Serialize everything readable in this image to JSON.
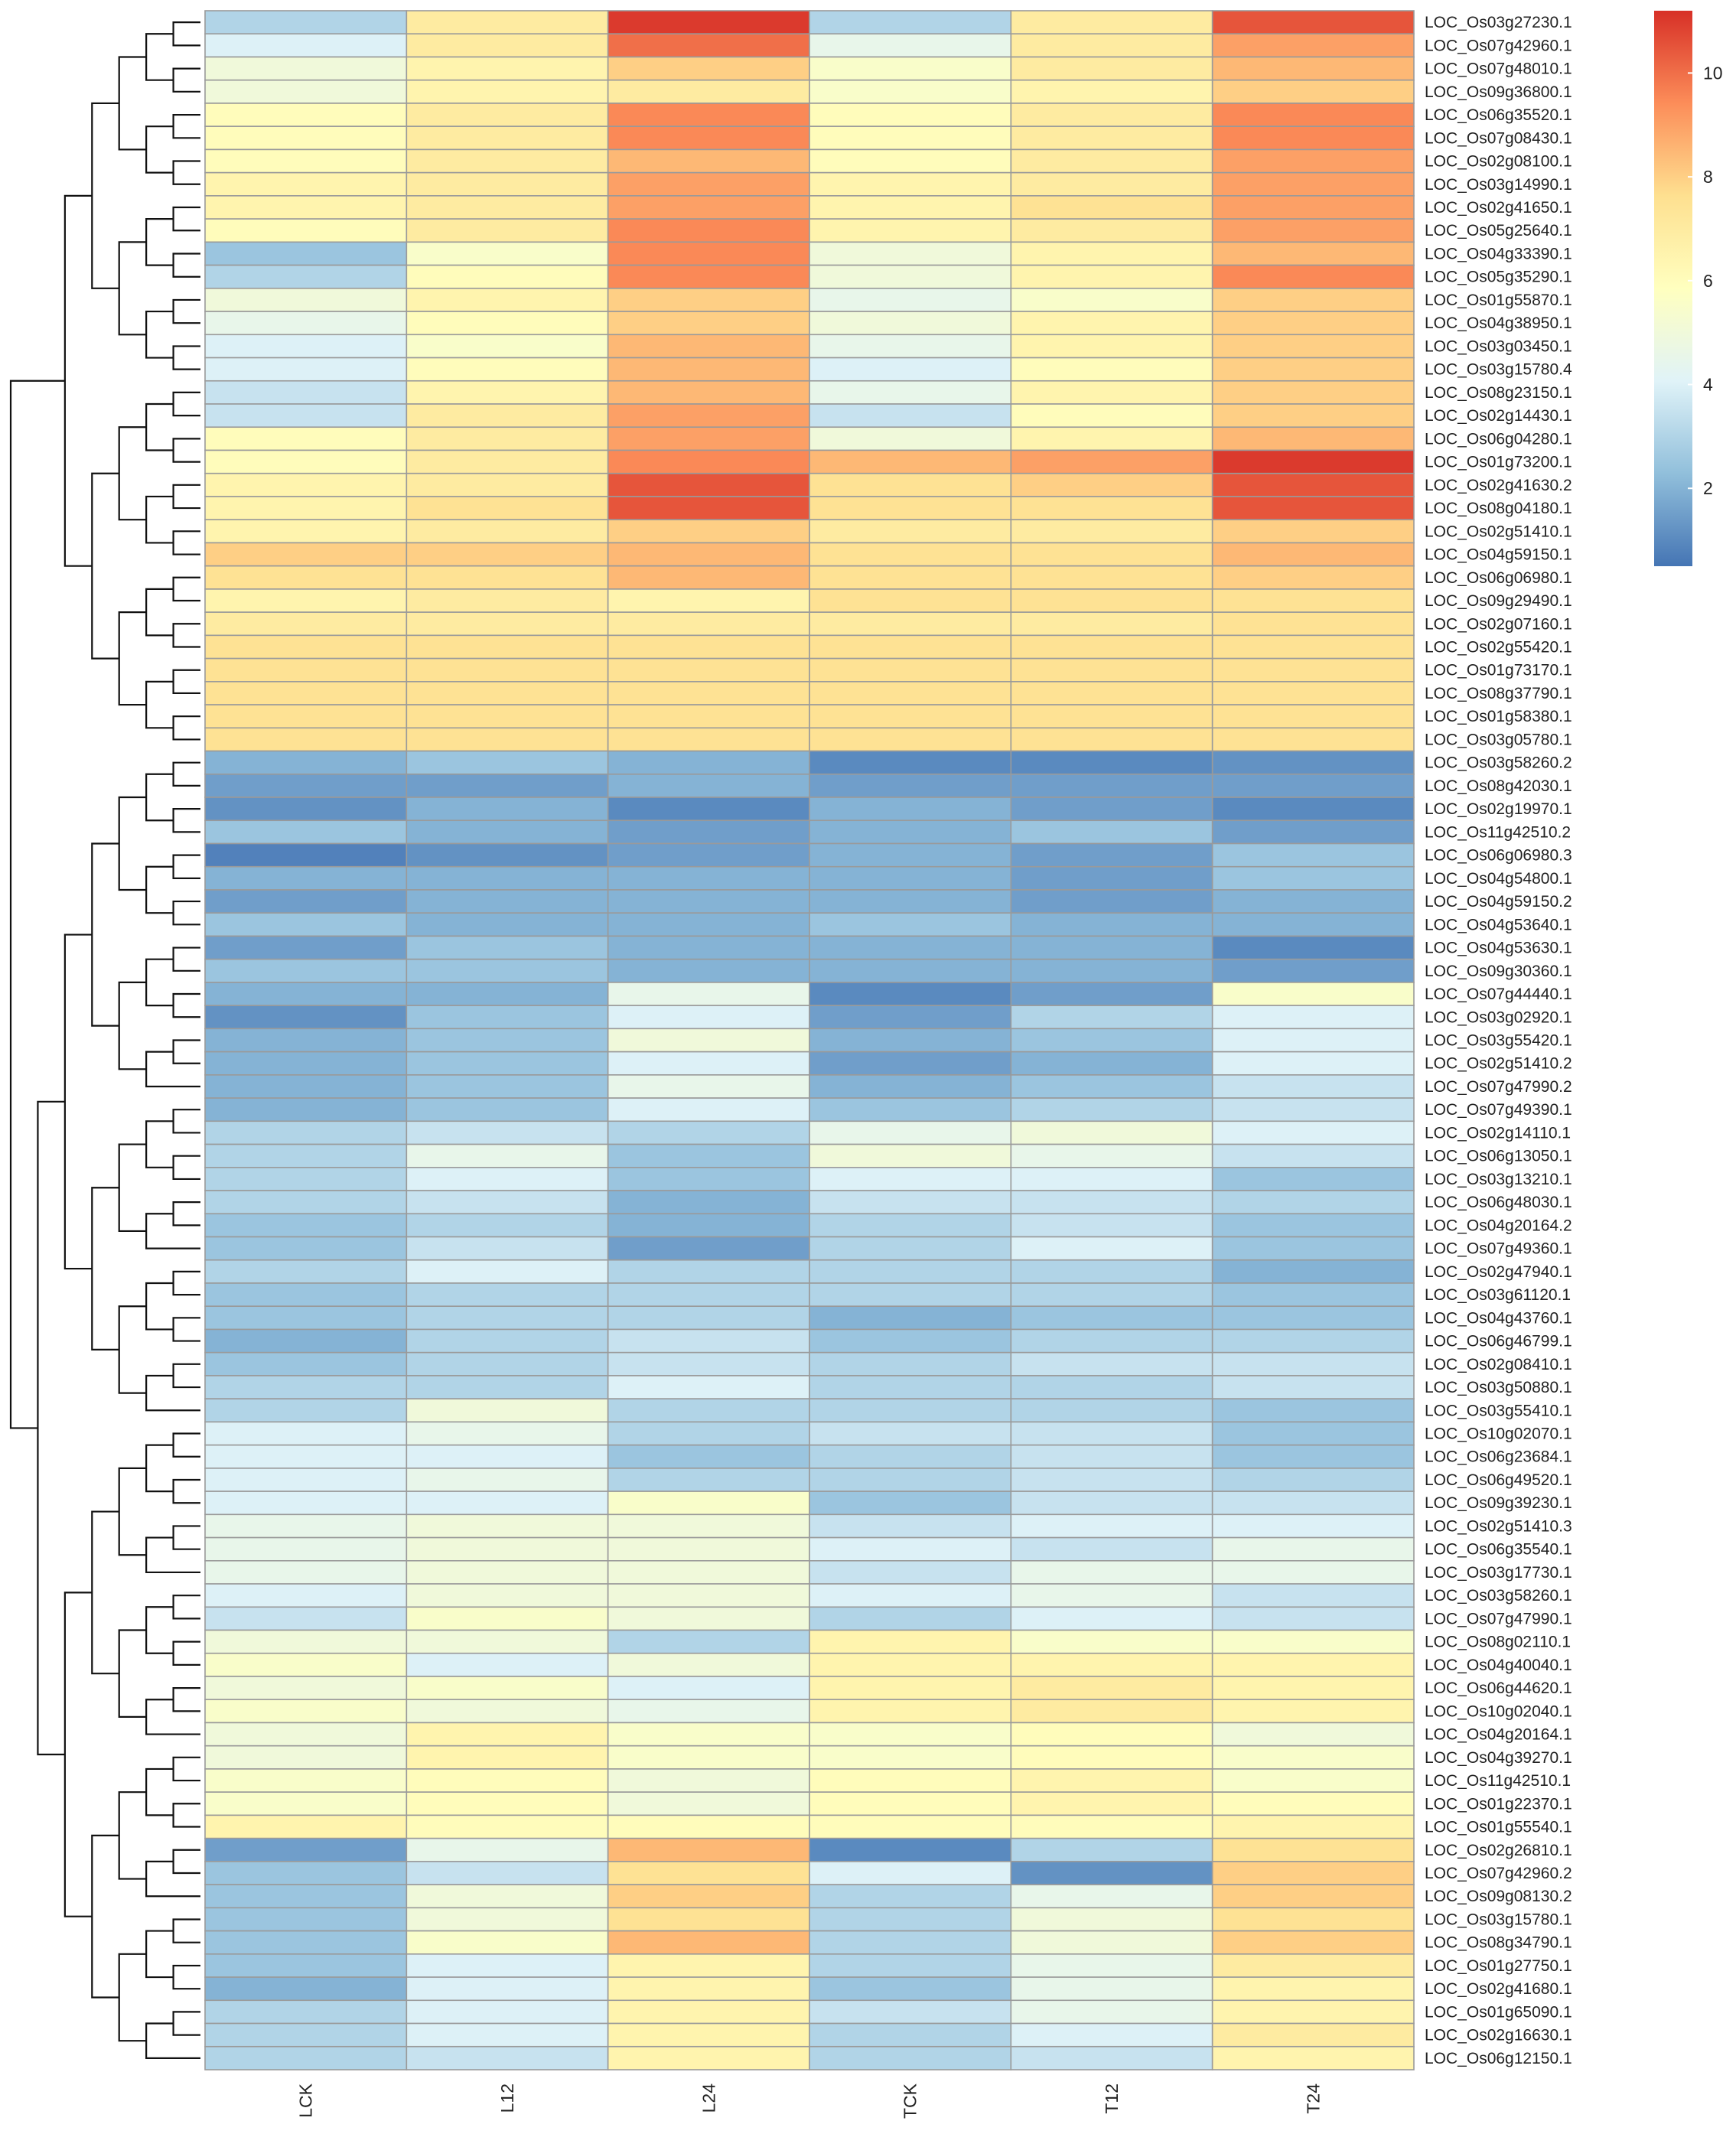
{
  "chart_data": {
    "type": "heatmap",
    "title": "",
    "xlabel": "",
    "ylabel": "",
    "columns": [
      "LCK",
      "L12",
      "L24",
      "TCK",
      "T12",
      "T24"
    ],
    "rows": [
      "LOC_Os03g27230.1",
      "LOC_Os07g42960.1",
      "LOC_Os07g48010.1",
      "LOC_Os09g36800.1",
      "LOC_Os06g35520.1",
      "LOC_Os07g08430.1",
      "LOC_Os02g08100.1",
      "LOC_Os03g14990.1",
      "LOC_Os02g41650.1",
      "LOC_Os05g25640.1",
      "LOC_Os04g33390.1",
      "LOC_Os05g35290.1",
      "LOC_Os01g55870.1",
      "LOC_Os04g38950.1",
      "LOC_Os03g03450.1",
      "LOC_Os03g15780.4",
      "LOC_Os08g23150.1",
      "LOC_Os02g14430.1",
      "LOC_Os06g04280.1",
      "LOC_Os01g73200.1",
      "LOC_Os02g41630.2",
      "LOC_Os08g04180.1",
      "LOC_Os02g51410.1",
      "LOC_Os04g59150.1",
      "LOC_Os06g06980.1",
      "LOC_Os09g29490.1",
      "LOC_Os02g07160.1",
      "LOC_Os02g55420.1",
      "LOC_Os01g73170.1",
      "LOC_Os08g37790.1",
      "LOC_Os01g58380.1",
      "LOC_Os03g05780.1",
      "LOC_Os03g58260.2",
      "LOC_Os08g42030.1",
      "LOC_Os02g19970.1",
      "LOC_Os11g42510.2",
      "LOC_Os06g06980.3",
      "LOC_Os04g54800.1",
      "LOC_Os04g59150.2",
      "LOC_Os04g53640.1",
      "LOC_Os04g53630.1",
      "LOC_Os09g30360.1",
      "LOC_Os07g44440.1",
      "LOC_Os03g02920.1",
      "LOC_Os03g55420.1",
      "LOC_Os02g51410.2",
      "LOC_Os07g47990.2",
      "LOC_Os07g49390.1",
      "LOC_Os02g14110.1",
      "LOC_Os06g13050.1",
      "LOC_Os03g13210.1",
      "LOC_Os06g48030.1",
      "LOC_Os04g20164.2",
      "LOC_Os07g49360.1",
      "LOC_Os02g47940.1",
      "LOC_Os03g61120.1",
      "LOC_Os04g43760.1",
      "LOC_Os06g46799.1",
      "LOC_Os02g08410.1",
      "LOC_Os03g50880.1",
      "LOC_Os03g55410.1",
      "LOC_Os10g02070.1",
      "LOC_Os06g23684.1",
      "LOC_Os06g49520.1",
      "LOC_Os09g39230.1",
      "LOC_Os02g51410.3",
      "LOC_Os06g35540.1",
      "LOC_Os03g17730.1",
      "LOC_Os03g58260.1",
      "LOC_Os07g47990.1",
      "LOC_Os08g02110.1",
      "LOC_Os04g40040.1",
      "LOC_Os06g44620.1",
      "LOC_Os10g02040.1",
      "LOC_Os04g20164.1",
      "LOC_Os04g39270.1",
      "LOC_Os11g42510.1",
      "LOC_Os01g22370.1",
      "LOC_Os01g55540.1",
      "LOC_Os02g26810.1",
      "LOC_Os07g42960.2",
      "LOC_Os09g08130.2",
      "LOC_Os03g15780.1",
      "LOC_Os08g34790.1",
      "LOC_Os01g27750.1",
      "LOC_Os02g41680.1",
      "LOC_Os01g65090.1",
      "LOC_Os02g16630.1",
      "LOC_Os06g12150.1"
    ],
    "values": [
      [
        3.0,
        7.0,
        11.0,
        3.0,
        7.0,
        10.5
      ],
      [
        4.0,
        7.0,
        10.0,
        4.5,
        7.0,
        9.0
      ],
      [
        5.0,
        6.5,
        8.0,
        5.5,
        7.0,
        8.5
      ],
      [
        5.0,
        6.5,
        7.0,
        5.5,
        6.5,
        8.0
      ],
      [
        6.0,
        7.0,
        9.5,
        6.0,
        7.0,
        9.5
      ],
      [
        6.0,
        7.0,
        9.5,
        6.0,
        7.0,
        9.5
      ],
      [
        6.0,
        7.0,
        8.5,
        6.0,
        7.0,
        9.0
      ],
      [
        6.5,
        7.0,
        9.0,
        6.5,
        7.0,
        9.0
      ],
      [
        6.5,
        7.0,
        9.0,
        6.5,
        7.5,
        9.0
      ],
      [
        6.0,
        7.0,
        9.5,
        6.5,
        7.0,
        9.0
      ],
      [
        2.5,
        5.5,
        9.5,
        5.0,
        6.5,
        8.5
      ],
      [
        3.0,
        6.0,
        9.5,
        5.0,
        6.5,
        9.5
      ],
      [
        5.0,
        6.5,
        8.0,
        4.5,
        5.5,
        8.0
      ],
      [
        4.5,
        6.0,
        8.0,
        5.0,
        6.5,
        8.0
      ],
      [
        4.0,
        5.5,
        8.5,
        4.5,
        6.5,
        8.0
      ],
      [
        4.0,
        6.0,
        8.5,
        4.0,
        6.0,
        8.0
      ],
      [
        3.5,
        6.5,
        8.5,
        4.5,
        6.5,
        8.0
      ],
      [
        3.5,
        7.0,
        9.0,
        3.5,
        6.0,
        8.0
      ],
      [
        6.0,
        7.0,
        9.0,
        5.0,
        6.5,
        8.5
      ],
      [
        6.0,
        7.0,
        9.5,
        8.5,
        9.0,
        11.0
      ],
      [
        6.5,
        7.0,
        10.5,
        7.5,
        8.0,
        10.5
      ],
      [
        6.5,
        7.5,
        10.5,
        7.5,
        7.5,
        10.5
      ],
      [
        6.5,
        7.0,
        8.0,
        7.0,
        7.0,
        8.0
      ],
      [
        8.0,
        8.0,
        8.5,
        7.5,
        7.5,
        8.5
      ],
      [
        7.5,
        7.5,
        8.5,
        7.5,
        7.5,
        8.0
      ],
      [
        6.5,
        7.0,
        6.5,
        7.5,
        7.5,
        7.5
      ],
      [
        7.0,
        7.0,
        7.0,
        7.0,
        7.0,
        7.5
      ],
      [
        7.5,
        7.5,
        7.5,
        7.5,
        7.5,
        7.5
      ],
      [
        7.5,
        7.5,
        7.5,
        7.5,
        7.5,
        7.5
      ],
      [
        7.5,
        7.5,
        7.5,
        7.5,
        7.5,
        7.5
      ],
      [
        7.5,
        7.5,
        7.5,
        7.5,
        7.5,
        7.5
      ],
      [
        7.5,
        7.5,
        7.5,
        7.5,
        7.5,
        7.5
      ],
      [
        2.0,
        2.5,
        2.0,
        1.0,
        1.0,
        1.2
      ],
      [
        1.5,
        1.5,
        2.0,
        1.5,
        1.5,
        1.5
      ],
      [
        1.2,
        2.0,
        1.0,
        2.0,
        1.5,
        1.0
      ],
      [
        2.5,
        2.0,
        1.5,
        2.0,
        2.5,
        1.5
      ],
      [
        0.8,
        1.2,
        1.5,
        2.0,
        1.5,
        2.5
      ],
      [
        2.0,
        2.0,
        2.0,
        2.0,
        1.5,
        2.5
      ],
      [
        1.5,
        2.0,
        2.0,
        2.0,
        1.5,
        2.0
      ],
      [
        2.5,
        2.0,
        2.0,
        2.5,
        2.0,
        2.0
      ],
      [
        1.5,
        2.5,
        2.0,
        2.0,
        2.0,
        1.0
      ],
      [
        2.5,
        2.5,
        2.0,
        2.0,
        2.0,
        1.5
      ],
      [
        2.0,
        2.0,
        4.5,
        1.0,
        1.5,
        5.5
      ],
      [
        1.2,
        2.5,
        4.0,
        1.5,
        3.0,
        4.0
      ],
      [
        2.0,
        2.5,
        5.0,
        2.0,
        2.5,
        4.0
      ],
      [
        2.0,
        2.5,
        4.0,
        1.5,
        2.0,
        4.0
      ],
      [
        2.0,
        2.5,
        4.5,
        2.0,
        2.5,
        3.5
      ],
      [
        2.0,
        2.5,
        4.0,
        2.5,
        3.0,
        3.5
      ],
      [
        3.0,
        3.5,
        3.0,
        4.5,
        5.0,
        4.0
      ],
      [
        3.0,
        4.5,
        2.5,
        5.0,
        4.5,
        3.5
      ],
      [
        3.0,
        4.0,
        2.5,
        4.0,
        4.0,
        2.5
      ],
      [
        3.0,
        3.5,
        2.0,
        3.5,
        3.5,
        3.0
      ],
      [
        2.5,
        3.0,
        2.0,
        3.0,
        3.5,
        2.5
      ],
      [
        2.5,
        3.5,
        1.5,
        3.0,
        4.0,
        2.5
      ],
      [
        3.0,
        4.0,
        3.0,
        3.0,
        3.0,
        2.0
      ],
      [
        2.5,
        3.0,
        3.0,
        3.0,
        3.0,
        2.5
      ],
      [
        2.5,
        3.0,
        3.0,
        2.0,
        2.5,
        2.5
      ],
      [
        2.0,
        3.0,
        3.5,
        2.5,
        3.0,
        3.0
      ],
      [
        2.5,
        3.0,
        3.5,
        3.0,
        3.5,
        3.5
      ],
      [
        3.0,
        3.0,
        4.0,
        3.0,
        3.0,
        3.5
      ],
      [
        3.0,
        5.0,
        3.0,
        3.0,
        3.0,
        2.5
      ],
      [
        4.0,
        4.5,
        3.0,
        3.5,
        3.5,
        2.5
      ],
      [
        4.0,
        4.0,
        2.5,
        3.0,
        3.5,
        2.5
      ],
      [
        4.0,
        4.5,
        3.0,
        3.0,
        3.5,
        3.0
      ],
      [
        4.0,
        4.0,
        5.5,
        2.5,
        3.5,
        3.5
      ],
      [
        4.5,
        5.0,
        5.0,
        3.5,
        4.0,
        4.0
      ],
      [
        4.5,
        5.0,
        5.0,
        4.0,
        3.5,
        4.5
      ],
      [
        4.5,
        5.0,
        5.0,
        3.5,
        4.5,
        4.5
      ],
      [
        4.0,
        5.0,
        5.0,
        4.0,
        4.5,
        3.5
      ],
      [
        3.5,
        5.5,
        5.0,
        3.0,
        4.0,
        3.5
      ],
      [
        5.0,
        5.0,
        3.0,
        6.5,
        5.5,
        5.5
      ],
      [
        5.5,
        4.0,
        5.0,
        6.5,
        6.5,
        6.5
      ],
      [
        5.0,
        5.5,
        4.0,
        6.5,
        7.0,
        6.5
      ],
      [
        5.5,
        5.0,
        4.5,
        6.5,
        7.0,
        6.5
      ],
      [
        5.0,
        6.5,
        5.5,
        5.5,
        6.0,
        5.0
      ],
      [
        5.0,
        6.5,
        5.5,
        5.5,
        6.0,
        5.5
      ],
      [
        5.5,
        6.0,
        5.0,
        6.0,
        6.5,
        5.5
      ],
      [
        5.5,
        6.0,
        5.0,
        6.0,
        6.5,
        6.0
      ],
      [
        6.5,
        6.0,
        6.0,
        6.0,
        6.0,
        6.5
      ],
      [
        1.5,
        4.5,
        8.5,
        1.0,
        3.0,
        7.5
      ],
      [
        2.5,
        3.5,
        7.5,
        4.0,
        1.2,
        8.0
      ],
      [
        2.5,
        5.0,
        8.0,
        3.0,
        4.5,
        8.0
      ],
      [
        2.5,
        5.0,
        7.5,
        3.0,
        5.0,
        7.5
      ],
      [
        2.5,
        5.5,
        8.5,
        3.0,
        5.0,
        8.0
      ],
      [
        2.5,
        4.0,
        6.5,
        3.0,
        4.5,
        7.0
      ],
      [
        2.0,
        4.0,
        6.5,
        2.5,
        4.5,
        6.5
      ],
      [
        3.0,
        4.0,
        6.5,
        3.5,
        4.5,
        6.5
      ],
      [
        3.0,
        4.0,
        6.5,
        3.0,
        4.0,
        7.0
      ],
      [
        3.0,
        3.5,
        6.5,
        3.0,
        3.5,
        6.5
      ]
    ],
    "colorbar": {
      "ticks": [
        2,
        4,
        6,
        8,
        10
      ],
      "tick_labels": [
        "2",
        "4",
        "6",
        "8",
        "10"
      ],
      "range": [
        0.5,
        11.2
      ],
      "colors": [
        "#4575b4",
        "#91bfdb",
        "#e0f3f8",
        "#ffffbf",
        "#fee090",
        "#fc8d59",
        "#d73027"
      ]
    },
    "dendrogram": {
      "side": "left",
      "main_split_after_row": 32
    }
  }
}
